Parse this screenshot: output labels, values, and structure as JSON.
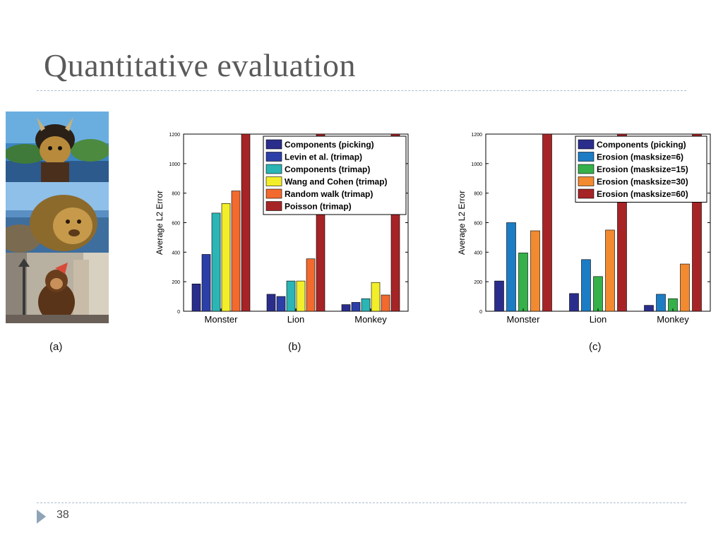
{
  "slide": {
    "title": "Quantitative evaluation",
    "page_number": "38",
    "panel_labels": [
      "(a)",
      "(b)",
      "(c)"
    ]
  },
  "images": [
    "monster-photo",
    "lion-photo",
    "monkey-photo"
  ],
  "chart_data": [
    {
      "type": "bar",
      "ylabel": "Average L2 Error",
      "ylim": [
        0,
        1200
      ],
      "yticks": [
        0,
        200,
        400,
        600,
        800,
        1000,
        1200
      ],
      "categories": [
        "Monster",
        "Lion",
        "Monkey"
      ],
      "legend_position": "top-right",
      "grid": false,
      "series": [
        {
          "name": "Components (picking)",
          "color": "#2b2d8c",
          "values": [
            185,
            115,
            45
          ]
        },
        {
          "name": "Levin et al. (trimap)",
          "color": "#2c3fa8",
          "values": [
            385,
            100,
            60
          ]
        },
        {
          "name": "Components (trimap)",
          "color": "#2bb5b5",
          "values": [
            665,
            205,
            85
          ]
        },
        {
          "name": "Wang and Cohen (trimap)",
          "color": "#f2ee2a",
          "values": [
            730,
            205,
            195
          ]
        },
        {
          "name": "Random walk (trimap)",
          "color": "#f26a2e",
          "values": [
            815,
            355,
            110
          ]
        },
        {
          "name": "Poisson (trimap)",
          "color": "#a62426",
          "values": [
            1250,
            1250,
            1250
          ]
        }
      ]
    },
    {
      "type": "bar",
      "ylabel": "Average L2 Error",
      "ylim": [
        0,
        1200
      ],
      "yticks": [
        0,
        200,
        400,
        600,
        800,
        1000,
        1200
      ],
      "categories": [
        "Monster",
        "Lion",
        "Monkey"
      ],
      "legend_position": "top-right",
      "grid": false,
      "series": [
        {
          "name": "Components (picking)",
          "color": "#2b2d8c",
          "values": [
            205,
            120,
            40
          ]
        },
        {
          "name": "Erosion (masksize=6)",
          "color": "#1c7cc4",
          "values": [
            600,
            350,
            115
          ]
        },
        {
          "name": "Erosion (masksize=15)",
          "color": "#36b14a",
          "values": [
            395,
            235,
            85
          ]
        },
        {
          "name": "Erosion (masksize=30)",
          "color": "#f28a30",
          "values": [
            545,
            550,
            320
          ]
        },
        {
          "name": "Erosion (masksize=60)",
          "color": "#a62426",
          "values": [
            1250,
            1250,
            1250
          ]
        }
      ]
    }
  ]
}
